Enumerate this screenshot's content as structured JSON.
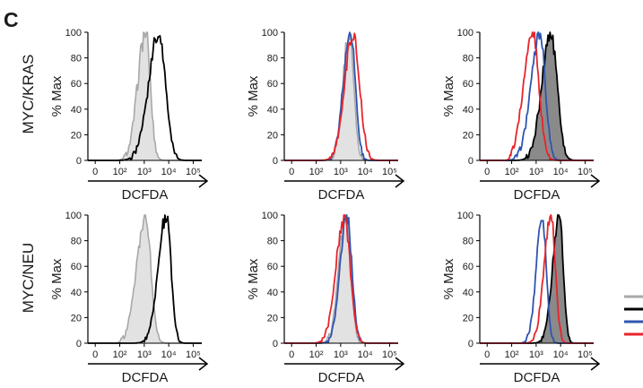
{
  "panel_letter": "C",
  "row_labels": [
    "MYC/KRAS",
    "MYC/NEU"
  ],
  "y_axis_label": "% Max",
  "x_axis_label": "DCFDA",
  "y_ticks": [
    "0",
    "20",
    "40",
    "60",
    "80",
    "100"
  ],
  "x_ticks": [
    "0",
    "10²",
    "10³",
    "10⁴",
    "10⁵"
  ],
  "colors": {
    "gray": "#a8a8a8",
    "gray_fill": "#e2e2e2",
    "black": "#000000",
    "dark_fill": "#8a8a8a",
    "blue": "#2f55b0",
    "red": "#e8242b"
  },
  "legend_swatches": [
    "gray",
    "black",
    "blue",
    "red"
  ],
  "chart_data": [
    {
      "type": "area",
      "row": "MYC/KRAS",
      "column": 1,
      "xscale": "biexponential log",
      "ylim": [
        0,
        100
      ],
      "xlabel": "DCFDA",
      "ylabel": "% Max",
      "series": [
        {
          "color": "gray",
          "filled": true,
          "mode": 3.05,
          "width": 0.22,
          "skew": -0.45,
          "noise": 0.07
        },
        {
          "color": "black",
          "filled": false,
          "mode": 3.6,
          "width": 0.3,
          "skew": -0.4,
          "noise": 0.07
        }
      ]
    },
    {
      "type": "area",
      "row": "MYC/KRAS",
      "column": 2,
      "xscale": "biexponential log",
      "ylim": [
        0,
        100
      ],
      "xlabel": "DCFDA",
      "ylabel": "% Max",
      "series": [
        {
          "color": "gray",
          "filled": true,
          "mode": 3.35,
          "width": 0.2,
          "skew": -0.3,
          "noise": 0.07
        },
        {
          "color": "blue",
          "filled": false,
          "mode": 3.4,
          "width": 0.22,
          "skew": -0.3,
          "noise": 0.07
        },
        {
          "color": "red",
          "filled": false,
          "mode": 3.5,
          "width": 0.28,
          "skew": -0.2,
          "noise": 0.07
        }
      ]
    },
    {
      "type": "area",
      "row": "MYC/KRAS",
      "column": 3,
      "xscale": "biexponential log",
      "ylim": [
        0,
        100
      ],
      "xlabel": "DCFDA",
      "ylabel": "% Max",
      "series": [
        {
          "color": "black",
          "filled": true,
          "mode": 3.6,
          "width": 0.28,
          "skew": -0.3,
          "noise": 0.07
        },
        {
          "color": "blue",
          "filled": false,
          "mode": 3.15,
          "width": 0.25,
          "skew": -0.45,
          "noise": 0.06
        },
        {
          "color": "red",
          "filled": false,
          "mode": 2.85,
          "width": 0.28,
          "skew": -0.3,
          "noise": 0.06
        }
      ]
    },
    {
      "type": "area",
      "row": "MYC/NEU",
      "column": 1,
      "xscale": "biexponential log",
      "ylim": [
        0,
        100
      ],
      "xlabel": "DCFDA",
      "ylabel": "% Max",
      "series": [
        {
          "color": "gray",
          "filled": true,
          "mode": 3.05,
          "width": 0.25,
          "skew": -0.45,
          "noise": 0.07
        },
        {
          "color": "black",
          "filled": false,
          "mode": 3.9,
          "width": 0.22,
          "skew": -0.5,
          "noise": 0.05
        }
      ]
    },
    {
      "type": "area",
      "row": "MYC/NEU",
      "column": 2,
      "xscale": "biexponential log",
      "ylim": [
        0,
        100
      ],
      "xlabel": "DCFDA",
      "ylabel": "% Max",
      "series": [
        {
          "color": "gray",
          "filled": true,
          "mode": 3.2,
          "width": 0.22,
          "skew": -0.25,
          "noise": 0.07
        },
        {
          "color": "blue",
          "filled": false,
          "mode": 3.25,
          "width": 0.22,
          "skew": -0.25,
          "noise": 0.07
        },
        {
          "color": "red",
          "filled": false,
          "mode": 3.15,
          "width": 0.26,
          "skew": -0.3,
          "noise": 0.07
        }
      ]
    },
    {
      "type": "area",
      "row": "MYC/NEU",
      "column": 3,
      "xscale": "biexponential log",
      "ylim": [
        0,
        100
      ],
      "xlabel": "DCFDA",
      "ylabel": "% Max",
      "series": [
        {
          "color": "black",
          "filled": true,
          "mode": 3.95,
          "width": 0.18,
          "skew": -0.55,
          "noise": 0.05
        },
        {
          "color": "blue",
          "filled": false,
          "mode": 3.25,
          "width": 0.18,
          "skew": -0.35,
          "noise": 0.05
        },
        {
          "color": "red",
          "filled": false,
          "mode": 3.6,
          "width": 0.2,
          "skew": -0.4,
          "noise": 0.05
        }
      ]
    }
  ]
}
